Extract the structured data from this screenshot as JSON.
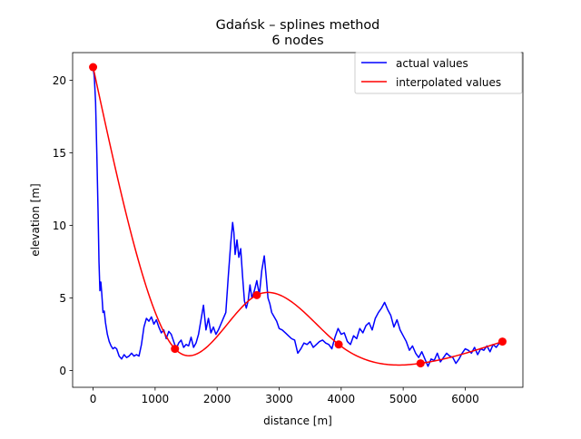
{
  "chart_data": {
    "type": "line",
    "title": "Gdańsk – splines method",
    "subtitle": "6 nodes",
    "xlabel": "distance [m]",
    "ylabel": "elevation [m]",
    "xlim": [
      -330,
      6930
    ],
    "ylim": [
      -1.15,
      21.9
    ],
    "xticks": [
      0,
      1000,
      2000,
      3000,
      4000,
      5000,
      6000
    ],
    "yticks": [
      0,
      5,
      10,
      15,
      20
    ],
    "grid": false,
    "legend_position": "top-right",
    "series": [
      {
        "name": "actual values",
        "color": "#0000ff",
        "x": [
          0,
          20,
          40,
          60,
          80,
          95,
          110,
          125,
          140,
          160,
          180,
          200,
          230,
          260,
          290,
          320,
          350,
          380,
          420,
          460,
          500,
          540,
          580,
          620,
          660,
          700,
          740,
          780,
          820,
          860,
          900,
          940,
          980,
          1020,
          1060,
          1100,
          1140,
          1180,
          1220,
          1260,
          1300,
          1340,
          1380,
          1420,
          1460,
          1500,
          1540,
          1580,
          1620,
          1660,
          1700,
          1740,
          1780,
          1820,
          1860,
          1900,
          1940,
          1980,
          2020,
          2060,
          2100,
          2140,
          2180,
          2220,
          2250,
          2270,
          2290,
          2320,
          2350,
          2380,
          2410,
          2440,
          2470,
          2500,
          2530,
          2560,
          2600,
          2640,
          2680,
          2720,
          2760,
          2790,
          2820,
          2850,
          2880,
          2920,
          2960,
          3000,
          3050,
          3100,
          3150,
          3200,
          3250,
          3300,
          3350,
          3400,
          3450,
          3500,
          3550,
          3600,
          3650,
          3700,
          3750,
          3800,
          3850,
          3900,
          3950,
          4000,
          4050,
          4100,
          4150,
          4200,
          4250,
          4300,
          4350,
          4400,
          4450,
          4500,
          4550,
          4600,
          4650,
          4700,
          4750,
          4800,
          4850,
          4900,
          4950,
          5000,
          5050,
          5100,
          5150,
          5200,
          5250,
          5300,
          5350,
          5400,
          5450,
          5500,
          5550,
          5600,
          5650,
          5700,
          5750,
          5800,
          5850,
          5900,
          5950,
          6000,
          6050,
          6100,
          6150,
          6200,
          6250,
          6300,
          6350,
          6400,
          6450,
          6500,
          6550,
          6600
        ],
        "y": [
          20.9,
          20.2,
          18.5,
          15.0,
          11.0,
          7.5,
          5.5,
          6.1,
          5.3,
          4.0,
          4.1,
          3.3,
          2.5,
          2.0,
          1.7,
          1.5,
          1.6,
          1.5,
          1.0,
          0.8,
          1.1,
          0.9,
          1.0,
          1.2,
          1.0,
          1.1,
          1.0,
          1.8,
          3.0,
          3.6,
          3.4,
          3.7,
          3.2,
          3.5,
          3.0,
          2.6,
          2.8,
          2.2,
          2.7,
          2.5,
          2.0,
          1.5,
          1.9,
          2.1,
          1.6,
          1.8,
          1.7,
          2.3,
          1.6,
          1.9,
          2.5,
          3.5,
          4.5,
          2.8,
          3.6,
          2.6,
          3.0,
          2.5,
          2.8,
          3.2,
          3.6,
          4.0,
          6.5,
          8.8,
          10.2,
          9.5,
          8.0,
          9.0,
          7.8,
          8.4,
          6.5,
          4.8,
          4.3,
          4.8,
          5.9,
          5.0,
          5.5,
          6.2,
          5.2,
          6.9,
          7.9,
          6.5,
          5.0,
          4.6,
          4.0,
          3.7,
          3.4,
          2.9,
          2.8,
          2.6,
          2.4,
          2.2,
          2.1,
          1.2,
          1.5,
          1.9,
          1.8,
          2.0,
          1.6,
          1.8,
          2.0,
          2.1,
          1.9,
          1.8,
          1.5,
          2.3,
          2.9,
          2.5,
          2.6,
          2.0,
          1.8,
          2.4,
          2.2,
          2.9,
          2.6,
          3.1,
          3.3,
          2.8,
          3.6,
          4.0,
          4.3,
          4.7,
          4.2,
          3.8,
          3.0,
          3.5,
          2.8,
          2.4,
          2.0,
          1.4,
          1.7,
          1.2,
          0.9,
          1.3,
          0.8,
          0.3,
          0.8,
          0.7,
          1.2,
          0.6,
          0.9,
          1.2,
          1.0,
          0.9,
          0.5,
          0.8,
          1.2,
          1.5,
          1.4,
          1.2,
          1.6,
          1.1,
          1.5,
          1.4,
          1.7,
          1.3,
          1.8,
          1.6,
          1.9,
          2.0
        ]
      },
      {
        "name": "interpolated values",
        "color": "#ff0000",
        "nodes_x": [
          0,
          1320,
          2640,
          3960,
          5280,
          6600
        ],
        "nodes_y": [
          20.9,
          1.5,
          5.2,
          1.8,
          0.5,
          2.0
        ]
      }
    ]
  }
}
